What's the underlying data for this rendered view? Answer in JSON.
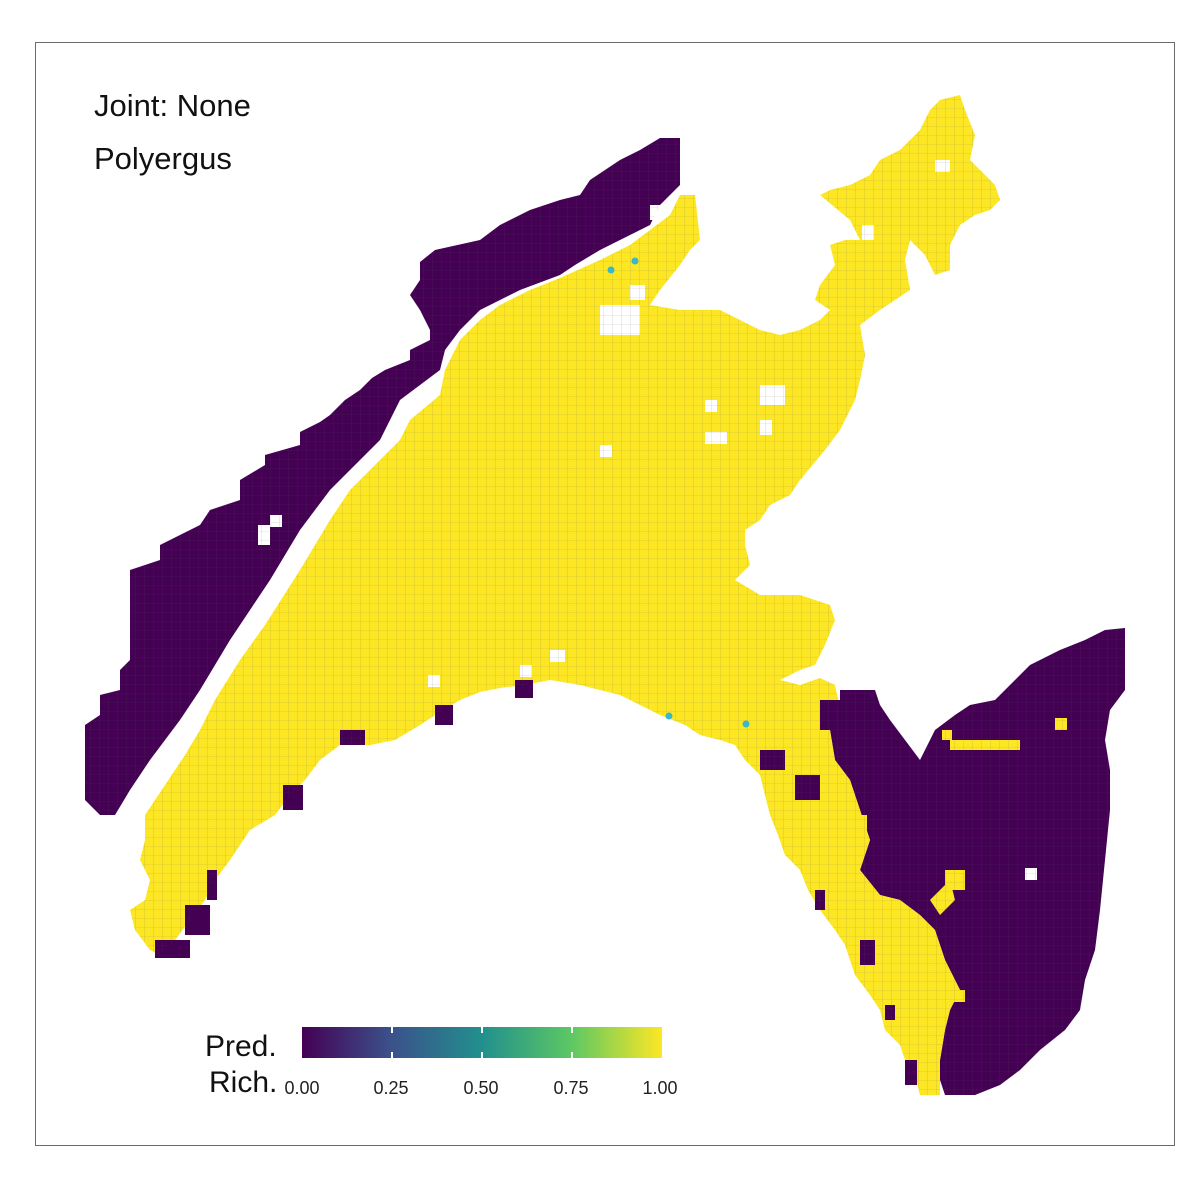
{
  "title": {
    "line1": "Joint: None",
    "line2": "Polyergus"
  },
  "legend": {
    "title_line1": "Pred.",
    "title_line2": "Rich.",
    "ticks": [
      "0.00",
      "0.25",
      "0.50",
      "0.75",
      "1.00"
    ],
    "colors": {
      "low": "#440154",
      "mid_low": "#3b528b",
      "mid": "#21908d",
      "mid_high": "#5dc863",
      "high": "#fde725"
    }
  },
  "map_colors": {
    "absent": "#440154",
    "present": "#fde725",
    "observed_points": "#3ab7c8"
  },
  "observation_count": 4
}
